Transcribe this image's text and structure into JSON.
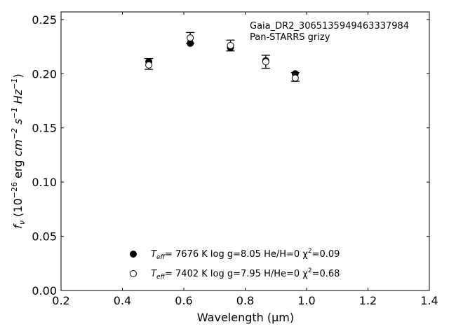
{
  "chart_data": {
    "type": "scatter",
    "xlabel": "Wavelength (μm)",
    "ylabel_parts": {
      "f": "f",
      "nu": "ν",
      "open": " (10",
      "exp": "−26",
      "mid": " erg ",
      "cm": "cm",
      "cm_exp": "−2",
      "s": " s",
      "s_exp": "−1",
      "hz": " Hz",
      "hz_exp": "−1",
      "close": ")"
    },
    "xlim": [
      0.2,
      1.4
    ],
    "ylim": [
      0.0,
      0.257
    ],
    "xticks": [
      "0.2",
      "0.4",
      "0.6",
      "0.8",
      "1.0",
      "1.2",
      "1.4"
    ],
    "yticks": [
      "0.00",
      "0.05",
      "0.10",
      "0.15",
      "0.20",
      "0.25"
    ],
    "annotation": [
      "Gaia_DR2_3065135949463337984",
      "Pan-STARRS grizy"
    ],
    "observed": {
      "x": [
        0.486,
        0.621,
        0.752,
        0.867,
        0.963
      ],
      "y": [
        0.209,
        0.233,
        0.226,
        0.211,
        0.197
      ],
      "err": [
        0.005,
        0.005,
        0.005,
        0.006,
        0.004
      ]
    },
    "series": [
      {
        "marker": "filled",
        "x": [
          0.486,
          0.621,
          0.752,
          0.867,
          0.963
        ],
        "y": [
          0.211,
          0.228,
          0.224,
          0.212,
          0.2
        ],
        "legend": {
          "teff_label": "T",
          "teff_sub": "eff",
          "rest": "=  7676 K  log g=8.05  He/H=0  χ",
          "chi_exp": "2",
          "chi_val": "=0.09"
        }
      },
      {
        "marker": "open",
        "x": [
          0.486,
          0.621,
          0.752,
          0.867,
          0.963
        ],
        "y": [
          0.208,
          0.233,
          0.226,
          0.211,
          0.196
        ],
        "legend": {
          "teff_label": "T",
          "teff_sub": "eff",
          "rest": "=  7402 K  log g=7.95  H/He=0  χ",
          "chi_exp": "2",
          "chi_val": "=0.68"
        }
      }
    ],
    "legend_placement": "lower-center",
    "grid": false
  }
}
